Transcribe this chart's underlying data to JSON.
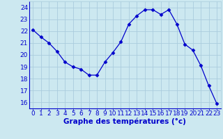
{
  "x": [
    0,
    1,
    2,
    3,
    4,
    5,
    6,
    7,
    8,
    9,
    10,
    11,
    12,
    13,
    14,
    15,
    16,
    17,
    18,
    19,
    20,
    21,
    22,
    23
  ],
  "y": [
    22.1,
    21.5,
    21.0,
    20.3,
    19.4,
    19.0,
    18.8,
    18.3,
    18.3,
    19.4,
    20.2,
    21.1,
    22.6,
    23.3,
    23.8,
    23.8,
    23.4,
    23.8,
    22.6,
    20.9,
    20.4,
    19.1,
    17.4,
    15.9
  ],
  "line_color": "#0000cc",
  "marker": "D",
  "marker_size": 2.5,
  "bg_color": "#cce8f0",
  "grid_color": "#aaccdd",
  "xlabel": "Graphe des températures (°c)",
  "xlabel_color": "#0000cc",
  "xlabel_fontsize": 7.5,
  "tick_color": "#0000cc",
  "tick_fontsize": 6.5,
  "ylim": [
    15.5,
    24.5
  ],
  "yticks": [
    16,
    17,
    18,
    19,
    20,
    21,
    22,
    23,
    24
  ],
  "xlim": [
    -0.5,
    23.5
  ],
  "xticks": [
    0,
    1,
    2,
    3,
    4,
    5,
    6,
    7,
    8,
    9,
    10,
    11,
    12,
    13,
    14,
    15,
    16,
    17,
    18,
    19,
    20,
    21,
    22,
    23
  ]
}
